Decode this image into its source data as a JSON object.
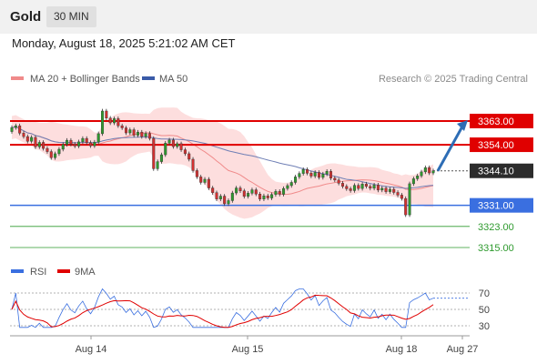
{
  "header": {
    "symbol": "Gold",
    "timeframe": "30 MIN",
    "timestamp": "Monday, August 18, 2025 5:21:02 AM CET"
  },
  "legend": {
    "ma20": "MA 20 + Bollinger Bands",
    "ma50": "MA 50",
    "rsi": "RSI",
    "ma9": "9MA"
  },
  "copyright": "Research © 2025 Trading Central",
  "colors": {
    "resistance": "#e00000",
    "support": "#3a6fe0",
    "target": "#2e9a2e",
    "arrow": "#2d6db5",
    "bull": "#2e9a2e",
    "bear": "#d23030",
    "band": "#fddada",
    "ma50": "#6f7fb5",
    "ma20": "#f08a8a"
  },
  "chart_data": {
    "type": "candlestick",
    "levels": [
      {
        "value": 3363.0,
        "label": "3363.00",
        "kind": "resistance"
      },
      {
        "value": 3354.0,
        "label": "3354.00",
        "kind": "resistance"
      },
      {
        "value": 3344.1,
        "label": "3344.10",
        "kind": "current"
      },
      {
        "value": 3331.0,
        "label": "3331.00",
        "kind": "pivot"
      },
      {
        "value": 3323.0,
        "label": "3323.00",
        "kind": "support"
      },
      {
        "value": 3315.0,
        "label": "3315.00",
        "kind": "support"
      }
    ],
    "x_ticks": [
      "Aug 14",
      "Aug 15",
      "Aug 18",
      "Aug 27"
    ],
    "rsi_ticks": [
      "70",
      "50",
      "30"
    ],
    "rsi_levels": [
      70,
      50,
      30
    ],
    "closes": [
      3360.5,
      3361.2,
      3358.4,
      3357.1,
      3355.3,
      3356.8,
      3353.2,
      3354.9,
      3352.6,
      3351.4,
      3349.1,
      3350.6,
      3352.3,
      3354.1,
      3355.7,
      3354.2,
      3353.5,
      3355.1,
      3356.4,
      3354.8,
      3353.6,
      3355.0,
      3358.2,
      3366.8,
      3364.1,
      3362.3,
      3363.9,
      3361.2,
      3360.4,
      3358.5,
      3359.7,
      3357.6,
      3358.8,
      3357.1,
      3358.3,
      3356.4,
      3344.9,
      3347.6,
      3350.2,
      3354.6,
      3355.8,
      3353.3,
      3354.4,
      3352.1,
      3350.6,
      3348.5,
      3344.2,
      3341.8,
      3339.7,
      3340.9,
      3337.6,
      3335.8,
      3333.4,
      3334.5,
      3331.6,
      3332.8,
      3335.7,
      3337.6,
      3336.5,
      3334.4,
      3335.6,
      3336.9,
      3335.3,
      3333.4,
      3334.6,
      3333.8,
      3335.1,
      3336.3,
      3335.2,
      3337.4,
      3338.5,
      3339.7,
      3341.8,
      3343.1,
      3344.6,
      3343.2,
      3342.1,
      3343.5,
      3341.6,
      3342.9,
      3343.9,
      3341.3,
      3340.6,
      3339.4,
      3338.2,
      3337.3,
      3336.6,
      3338.6,
      3337.4,
      3339.1,
      3338.2,
      3337.5,
      3338.7,
      3336.8,
      3337.5,
      3336.2,
      3337.1,
      3335.9,
      3334.9,
      3333.6,
      3327.4,
      3339.2,
      3341.1,
      3342.2,
      3343.7,
      3345.3,
      3343.3,
      3344.1
    ],
    "opens": [
      3359.0,
      3360.5,
      3361.2,
      3358.4,
      3357.1,
      3355.3,
      3356.8,
      3353.2,
      3354.9,
      3352.6,
      3351.4,
      3349.1,
      3350.6,
      3352.3,
      3354.1,
      3355.7,
      3354.2,
      3353.5,
      3355.1,
      3356.4,
      3354.8,
      3353.6,
      3355.0,
      3358.2,
      3366.8,
      3364.1,
      3362.3,
      3363.9,
      3361.2,
      3360.4,
      3358.5,
      3359.7,
      3357.6,
      3358.8,
      3357.1,
      3358.3,
      3356.4,
      3344.9,
      3347.6,
      3350.2,
      3354.6,
      3355.8,
      3353.3,
      3354.4,
      3352.1,
      3350.6,
      3348.5,
      3344.2,
      3341.8,
      3339.7,
      3340.9,
      3337.6,
      3335.8,
      3333.4,
      3334.5,
      3331.6,
      3332.8,
      3335.7,
      3337.6,
      3336.5,
      3334.4,
      3335.6,
      3336.9,
      3335.3,
      3333.4,
      3334.6,
      3333.8,
      3335.1,
      3336.3,
      3335.2,
      3337.4,
      3338.5,
      3339.7,
      3341.8,
      3343.1,
      3344.6,
      3343.2,
      3342.1,
      3343.5,
      3341.6,
      3342.9,
      3343.9,
      3341.3,
      3340.6,
      3339.4,
      3338.2,
      3337.3,
      3336.6,
      3338.6,
      3337.4,
      3339.1,
      3338.2,
      3337.5,
      3338.7,
      3336.8,
      3337.5,
      3336.2,
      3337.1,
      3335.9,
      3334.9,
      3333.6,
      3327.4,
      3339.2,
      3341.1,
      3342.2,
      3343.7,
      3345.3,
      3343.3
    ]
  }
}
